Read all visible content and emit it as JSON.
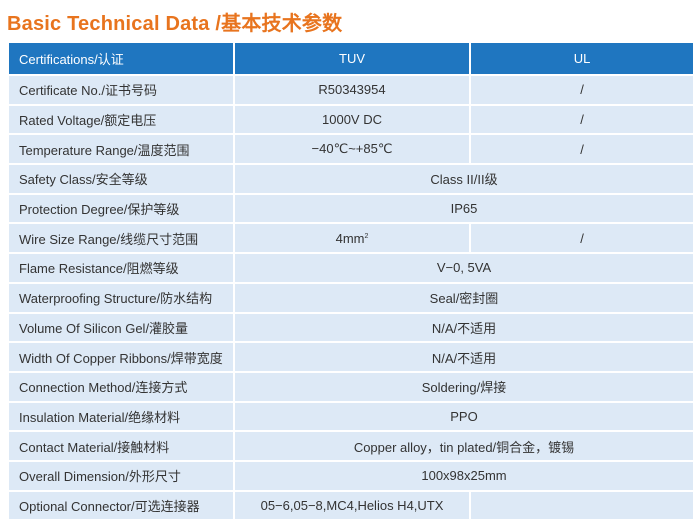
{
  "title": "Basic Technical Data /基本技术参数",
  "header": {
    "col1": "Certifications/认证",
    "col2": "TUV",
    "col3": "UL"
  },
  "rows": [
    {
      "label": "Certificate No./证书号码",
      "tuv": "R50343954",
      "ul": "/"
    },
    {
      "label": "Rated Voltage/额定电压",
      "tuv": "1000V DC",
      "ul": "/"
    },
    {
      "label": "Temperature Range/温度范围",
      "tuv": "−40℃~+85℃",
      "ul": "/"
    },
    {
      "label": "Safety Class/安全等级",
      "value": "Class II/II级"
    },
    {
      "label": "Protection Degree/保护等级",
      "value": "IP65"
    },
    {
      "label": "Wire Size Range/线缆尺寸范围",
      "tuv": "4mm",
      "tuv_sup": "2",
      "ul": "/"
    },
    {
      "label": "Flame Resistance/阻燃等级",
      "value": "V−0, 5VA"
    },
    {
      "label": "Waterproofing Structure/防水结构",
      "value": "Seal/密封圈"
    },
    {
      "label": "Volume Of Silicon Gel/灌胶量",
      "value": "N/A/不适用"
    },
    {
      "label": "Width Of Copper Ribbons/焊带宽度",
      "value": "N/A/不适用"
    },
    {
      "label": "Connection Method/连接方式",
      "value": "Soldering/焊接"
    },
    {
      "label": "Insulation Material/绝缘材料",
      "value": "PPO"
    },
    {
      "label": "Contact Material/接触材料",
      "value": "Copper alloy，tin plated/铜合金，镀锡"
    },
    {
      "label": "Overall Dimension/外形尺寸",
      "value": "100x98x25mm"
    },
    {
      "label": "Optional Connector/可选连接器",
      "tuv": "05−6,05−8,MC4,Helios H4,UTX",
      "ul": ""
    }
  ],
  "colors": {
    "title": "#e8741e",
    "header_bg": "#1f76c0",
    "row_bg": "#dde9f6"
  }
}
